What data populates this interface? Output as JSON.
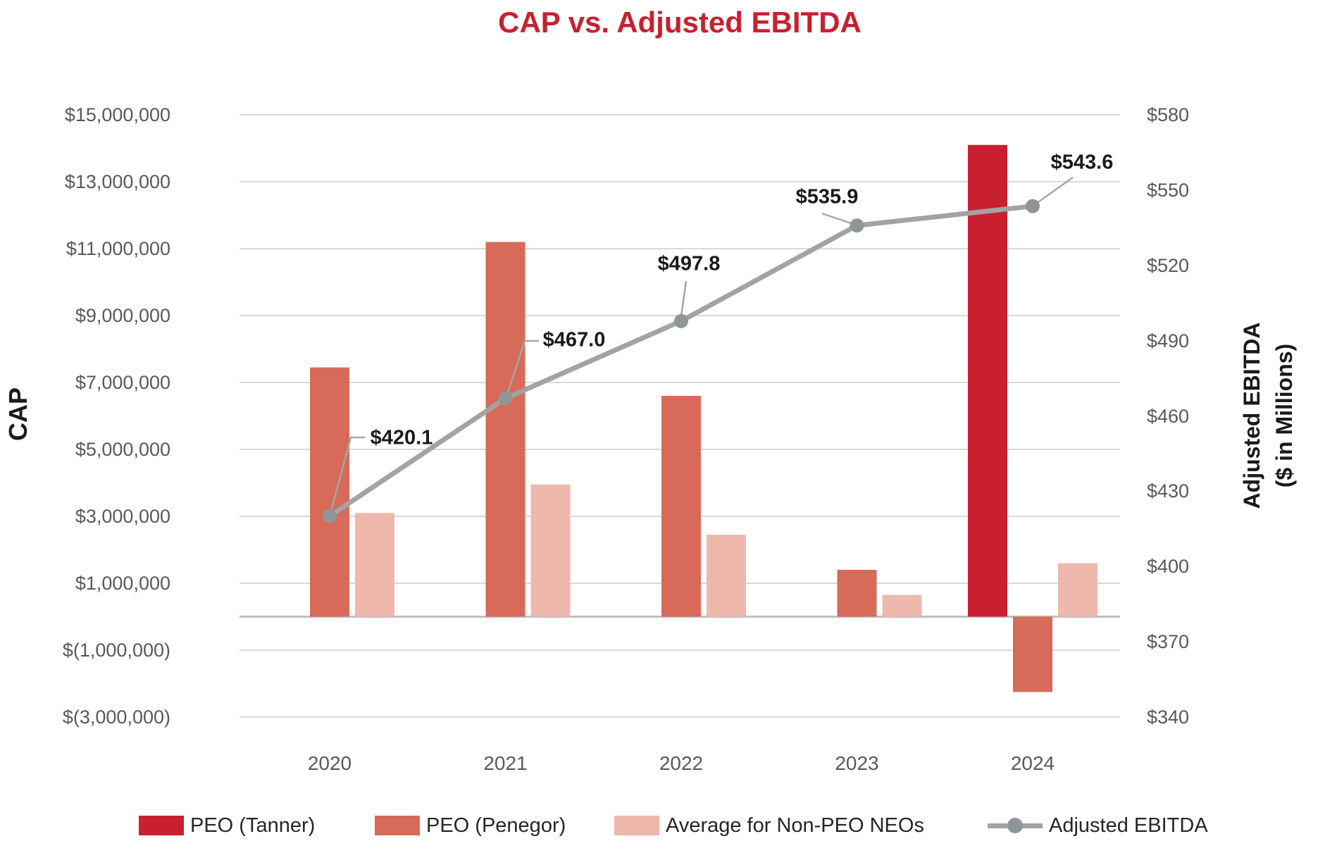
{
  "title": "CAP vs. Adjusted EBITDA",
  "left_axis": {
    "title": "CAP",
    "tick_labels": [
      "$15,000,000",
      "$13,000,000",
      "$11,000,000",
      "$9,000,000",
      "$7,000,000",
      "$5,000,000",
      "$3,000,000",
      "$1,000,000",
      "$(1,000,000)",
      "$(3,000,000)"
    ],
    "tick_values": [
      15000000,
      13000000,
      11000000,
      9000000,
      7000000,
      5000000,
      3000000,
      1000000,
      -1000000,
      -3000000
    ],
    "min": -3000000,
    "max": 15000000,
    "step": 2000000
  },
  "right_axis": {
    "title_line1": "Adjusted EBITDA",
    "title_line2": "($ in Millions)",
    "tick_labels": [
      "$580",
      "$550",
      "$520",
      "$490",
      "$460",
      "$430",
      "$400",
      "$370",
      "$340"
    ],
    "tick_values": [
      580,
      550,
      520,
      490,
      460,
      430,
      400,
      370,
      340
    ],
    "min": 340,
    "max": 580,
    "step": 30
  },
  "chart_data": {
    "type": "bar+line combo, dual axis",
    "categories": [
      "2020",
      "2021",
      "2022",
      "2023",
      "2024"
    ],
    "series": [
      {
        "name": "PEO (Tanner)",
        "type": "bar",
        "axis": "left",
        "color": "#C8202F",
        "values": [
          0,
          0,
          0,
          0,
          14100000
        ]
      },
      {
        "name": "PEO (Penegor)",
        "type": "bar",
        "axis": "left",
        "color": "#D76A58",
        "values": [
          7450000,
          11200000,
          6600000,
          1400000,
          -2250000
        ]
      },
      {
        "name": "Average for Non-PEO NEOs",
        "type": "bar",
        "axis": "left",
        "color": "#EFB8AC",
        "values": [
          3100000,
          3950000,
          2450000,
          650000,
          1600000
        ]
      },
      {
        "name": "Adjusted EBITDA",
        "type": "line",
        "axis": "right",
        "color": "#A3A3A3",
        "marker_color": "#8F9697",
        "values": [
          420.1,
          467.0,
          497.8,
          535.9,
          543.6
        ],
        "point_labels": [
          "$420.1",
          "$467.0",
          "$497.8",
          "$535.9",
          "$543.6"
        ]
      }
    ],
    "title": "CAP vs. Adjusted EBITDA",
    "xlabel": "",
    "ylabel_left": "CAP",
    "ylabel_right": "Adjusted EBITDA ($ in Millions)",
    "ylim_left": [
      -3000000,
      15000000
    ],
    "ylim_right": [
      340,
      580
    ],
    "grid": "horizontal gridlines on"
  },
  "colors": {
    "title": "#C8202F",
    "bar_tanner": "#C8202F",
    "bar_penegor": "#D76A58",
    "bar_nonpeo": "#EFB8AC",
    "line": "#A3A3A3",
    "line_marker": "#8F9697",
    "gridline": "#D9D9D9",
    "zero_baseline": "#C0C0C0",
    "axis_text": "#595959",
    "label_text": "#1a1a1a"
  },
  "legend": {
    "items": [
      {
        "label": "PEO (Tanner)",
        "swatch": "bar",
        "color": "#C8202F"
      },
      {
        "label": "PEO (Penegor)",
        "swatch": "bar",
        "color": "#D76A58"
      },
      {
        "label": "Average for Non-PEO NEOs",
        "swatch": "bar",
        "color": "#EFB8AC"
      },
      {
        "label": "Adjusted EBITDA",
        "swatch": "line-marker",
        "color": "#A3A3A3"
      }
    ]
  }
}
